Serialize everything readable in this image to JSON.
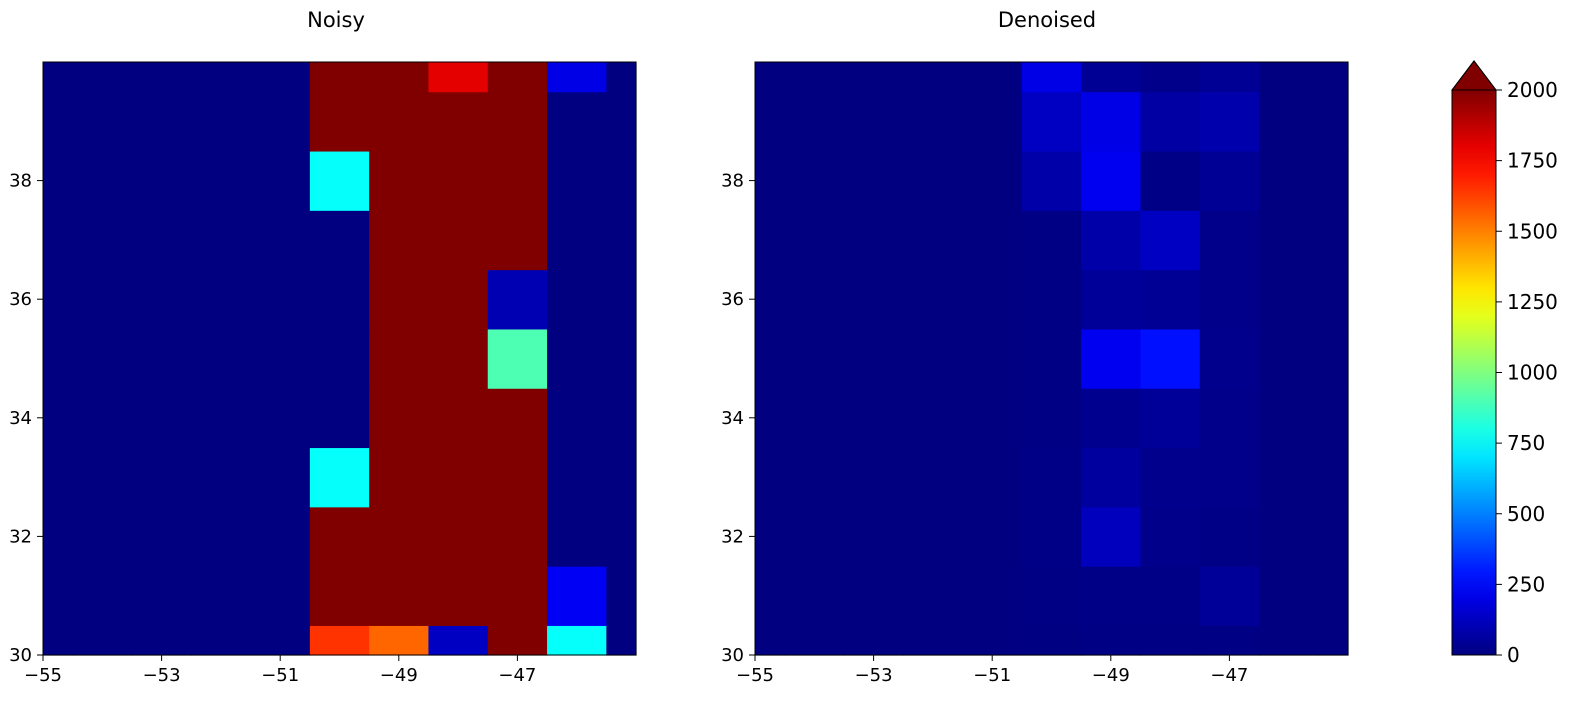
{
  "chart_data": [
    {
      "type": "heatmap",
      "title": "Noisy",
      "xlabel": "",
      "ylabel": "",
      "xlim": [
        -55,
        -45
      ],
      "ylim": [
        30,
        40
      ],
      "x_ticks": [
        -55,
        -53,
        -51,
        -49,
        -47
      ],
      "y_ticks": [
        30,
        32,
        34,
        36,
        38
      ],
      "x_tick_labels": [
        "−55",
        "−53",
        "−51",
        "−49",
        "−47"
      ],
      "y_tick_labels": [
        "30",
        "32",
        "34",
        "36",
        "38"
      ],
      "x_edges": [
        -55,
        -54.5,
        -53.5,
        -52.5,
        -51.5,
        -50.5,
        -49.5,
        -48.5,
        -47.5,
        -46.5,
        -45.5,
        -45
      ],
      "y_edges": [
        30,
        30.5,
        31.5,
        32.5,
        33.5,
        34.5,
        35.5,
        36.5,
        37.5,
        38.5,
        39.5,
        40
      ],
      "values": [
        [
          0,
          0,
          0,
          0,
          0,
          1650,
          1550,
          130,
          2000,
          760,
          0
        ],
        [
          0,
          0,
          0,
          0,
          0,
          2000,
          2000,
          2000,
          2000,
          230,
          0
        ],
        [
          0,
          0,
          0,
          0,
          0,
          2000,
          2000,
          2000,
          2000,
          0,
          0
        ],
        [
          0,
          0,
          0,
          0,
          0,
          760,
          2000,
          2000,
          2000,
          0,
          0
        ],
        [
          0,
          0,
          0,
          0,
          0,
          0,
          2000,
          2000,
          2000,
          0,
          0
        ],
        [
          0,
          0,
          0,
          0,
          0,
          0,
          2000,
          2000,
          900,
          0,
          0
        ],
        [
          0,
          0,
          0,
          0,
          0,
          0,
          2000,
          2000,
          100,
          0,
          0
        ],
        [
          0,
          0,
          0,
          0,
          0,
          0,
          2000,
          2000,
          2000,
          0,
          0
        ],
        [
          0,
          0,
          0,
          0,
          0,
          760,
          2000,
          2000,
          2000,
          0,
          0
        ],
        [
          0,
          0,
          0,
          0,
          0,
          2000,
          2000,
          2000,
          2000,
          0,
          0
        ],
        [
          0,
          0,
          0,
          0,
          0,
          2000,
          2000,
          1800,
          2000,
          200,
          0
        ]
      ]
    },
    {
      "type": "heatmap",
      "title": "Denoised",
      "xlabel": "",
      "ylabel": "",
      "xlim": [
        -55,
        -45
      ],
      "ylim": [
        30,
        40
      ],
      "x_ticks": [
        -55,
        -53,
        -51,
        -49,
        -47
      ],
      "y_ticks": [
        30,
        32,
        34,
        36,
        38
      ],
      "x_tick_labels": [
        "−55",
        "−53",
        "−51",
        "−49",
        "−47"
      ],
      "y_tick_labels": [
        "30",
        "32",
        "34",
        "36",
        "38"
      ],
      "x_edges": [
        -55,
        -54.5,
        -53.5,
        -52.5,
        -51.5,
        -50.5,
        -49.5,
        -48.5,
        -47.5,
        -46.5,
        -45.5,
        -45
      ],
      "y_edges": [
        30,
        30.5,
        31.5,
        32.5,
        33.5,
        34.5,
        35.5,
        36.5,
        37.5,
        38.5,
        39.5,
        40
      ],
      "values": [
        [
          0,
          0,
          0,
          0,
          0,
          5,
          10,
          10,
          10,
          0,
          0
        ],
        [
          0,
          0,
          0,
          0,
          0,
          10,
          15,
          15,
          50,
          0,
          0
        ],
        [
          0,
          0,
          0,
          0,
          0,
          15,
          120,
          20,
          15,
          0,
          0
        ],
        [
          0,
          0,
          0,
          0,
          0,
          15,
          60,
          25,
          20,
          0,
          0
        ],
        [
          0,
          0,
          0,
          0,
          0,
          10,
          30,
          50,
          20,
          0,
          0
        ],
        [
          0,
          0,
          0,
          0,
          0,
          10,
          220,
          280,
          25,
          0,
          0
        ],
        [
          0,
          0,
          0,
          0,
          0,
          10,
          50,
          40,
          20,
          0,
          0
        ],
        [
          0,
          0,
          0,
          0,
          0,
          10,
          80,
          130,
          20,
          0,
          0
        ],
        [
          0,
          0,
          0,
          0,
          0,
          80,
          220,
          15,
          40,
          0,
          0
        ],
        [
          0,
          0,
          0,
          0,
          0,
          130,
          200,
          70,
          90,
          0,
          0
        ],
        [
          0,
          0,
          0,
          0,
          0,
          200,
          40,
          20,
          40,
          0,
          0
        ]
      ]
    }
  ],
  "colorbar": {
    "colormap": "jet",
    "min": 0,
    "max": 2000,
    "extend": "max",
    "ticks": [
      0,
      250,
      500,
      750,
      1000,
      1250,
      1500,
      1750,
      2000
    ],
    "tick_labels": [
      "0",
      "250",
      "500",
      "750",
      "1000",
      "1250",
      "1500",
      "1750",
      "2000"
    ],
    "extend_color": "#800000"
  }
}
